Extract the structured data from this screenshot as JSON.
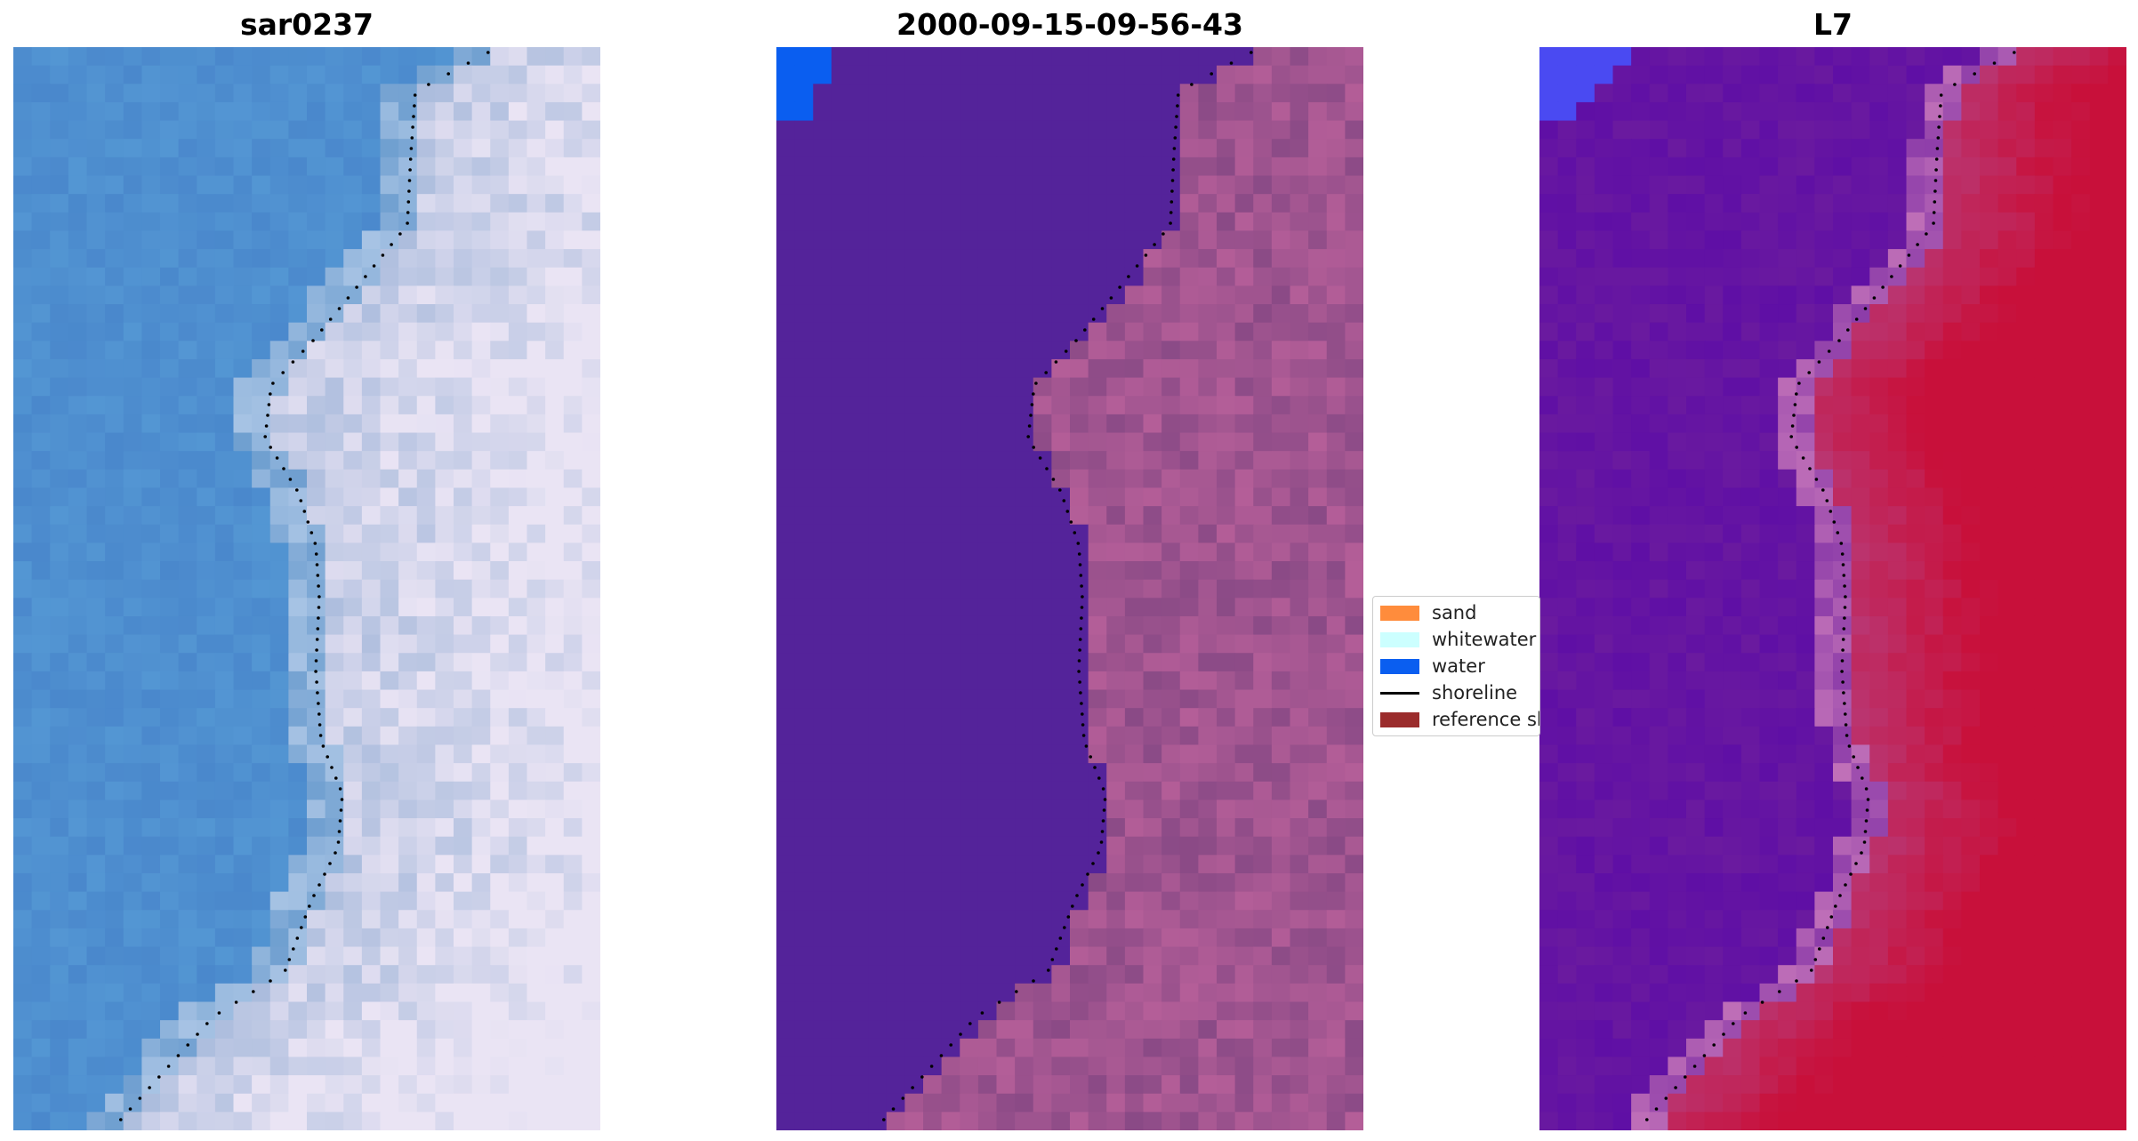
{
  "panels": [
    {
      "title": "sar0237",
      "style": "rgb"
    },
    {
      "title": "2000-09-15-09-56-43",
      "style": "classified"
    },
    {
      "title": "L7",
      "style": "index"
    }
  ],
  "legend": {
    "items": [
      {
        "label": "sand",
        "kind": "patch",
        "color": "#ff8c3c"
      },
      {
        "label": "whitewater",
        "kind": "patch",
        "color": "#ccffff"
      },
      {
        "label": "water",
        "kind": "patch",
        "color": "#0a5ef0"
      },
      {
        "label": "shoreline",
        "kind": "line",
        "color": "#000000"
      },
      {
        "label": "reference shoreline",
        "kind": "patch",
        "color": "#9b2c2c"
      }
    ]
  },
  "colors": {
    "water_class": "#54239a",
    "ocean_rgb": "#4a88cc",
    "land_rgb": "#c9d2ea",
    "land_class": "#9a4f8a",
    "index_water": "#6a1a9f",
    "index_land": "#c8103a",
    "shoreline_dots": "#000000"
  }
}
